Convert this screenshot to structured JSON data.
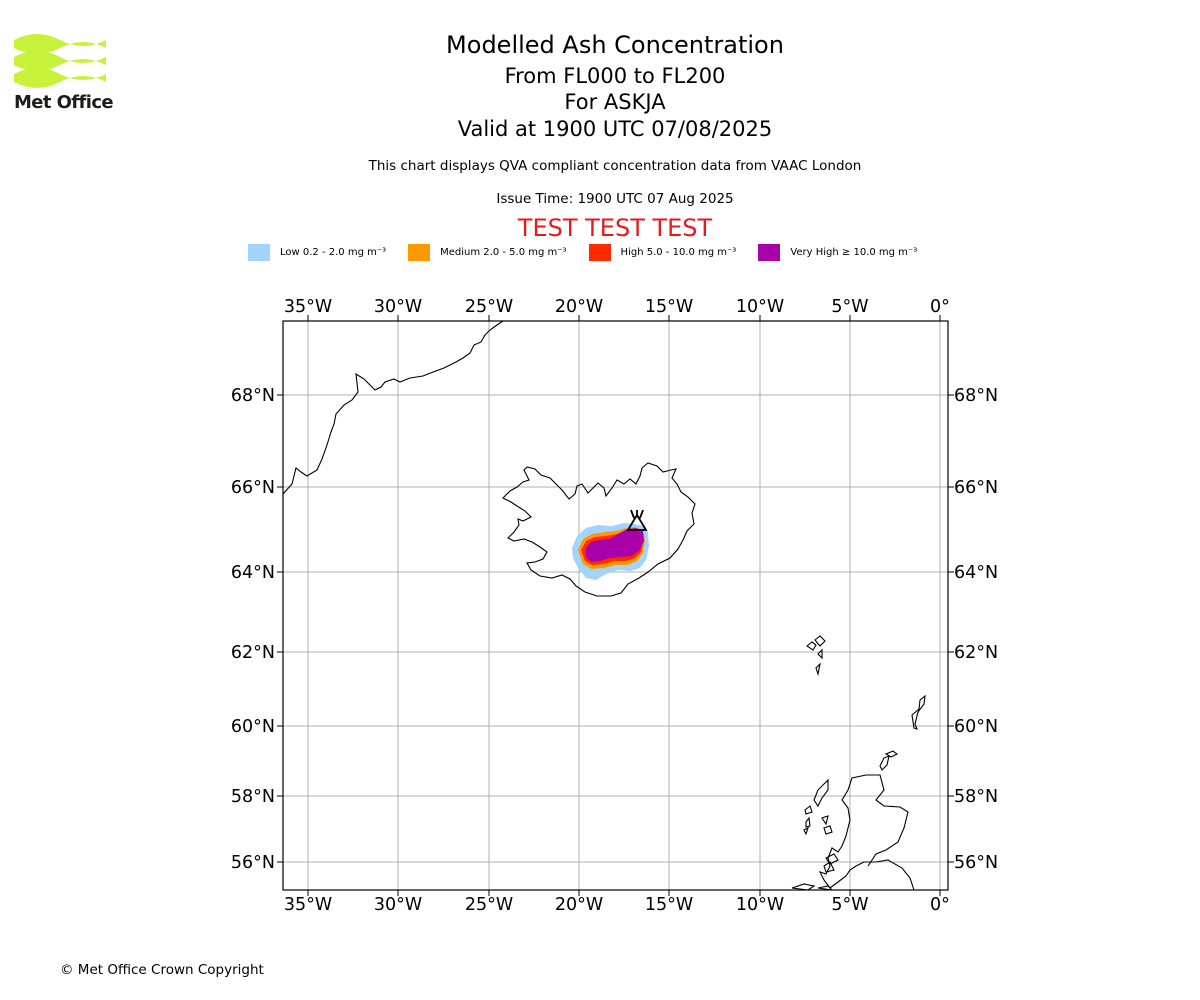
{
  "logo": {
    "name": "Met Office",
    "brand_color": "#c8f23a"
  },
  "header": {
    "title": "Modelled Ash Concentration",
    "level_range": "From FL000 to FL200",
    "volcano": "For ASKJA",
    "valid_time": "Valid at 1900 UTC 07/08/2025",
    "disclaimer": "This chart displays QVA compliant concentration data from VAAC London",
    "issue_time": "Issue Time: 1900 UTC 07 Aug 2025",
    "test_banner": "TEST TEST TEST"
  },
  "legend": [
    {
      "label": "Low 0.2 - 2.0 mg m⁻³",
      "color": "#a3d3ff"
    },
    {
      "label": "Medium 2.0 - 5.0 mg m⁻³",
      "color": "#ff9900"
    },
    {
      "label": "High 5.0 - 10.0 mg m⁻³",
      "color": "#ff2a00"
    },
    {
      "label": "Very High ≥ 10.0 mg m⁻³",
      "color": "#aa00aa"
    }
  ],
  "map": {
    "lon_ticks": [
      "35°W",
      "30°W",
      "25°W",
      "20°W",
      "15°W",
      "10°W",
      "5°W",
      "0°"
    ],
    "lat_ticks": [
      "68°N",
      "66°N",
      "64°N",
      "62°N",
      "60°N",
      "58°N",
      "56°N"
    ],
    "volcano_marker_icon": "volcano-triangle-icon",
    "gridline_color": "#b0b0b0"
  },
  "footer": {
    "copyright": "© Met Office Crown Copyright"
  }
}
